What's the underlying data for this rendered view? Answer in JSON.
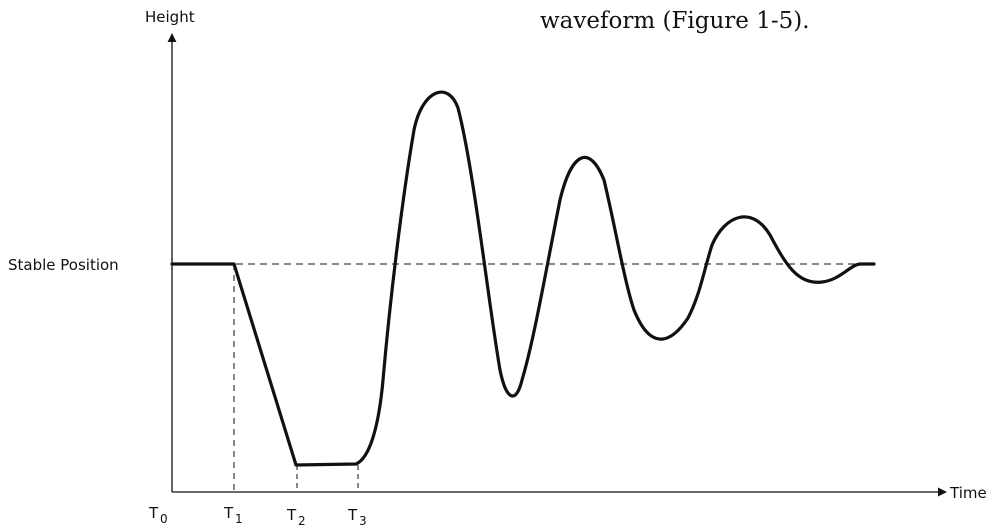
{
  "caption": "waveform (Figure 1-5).",
  "axes": {
    "y_label": "Height",
    "x_label": "Time"
  },
  "reference_line": {
    "label": "Stable Position"
  },
  "time_markers": [
    {
      "base": "T",
      "sub": "0"
    },
    {
      "base": "T",
      "sub": "1"
    },
    {
      "base": "T",
      "sub": "2"
    },
    {
      "base": "T",
      "sub": "3"
    }
  ],
  "colors": {
    "ink": "#111111"
  }
}
